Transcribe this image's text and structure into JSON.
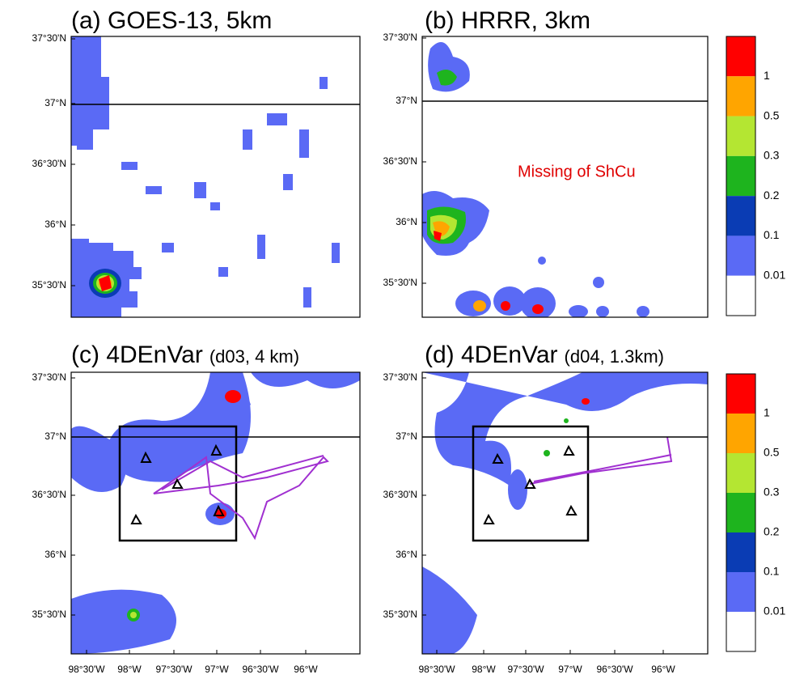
{
  "panels": [
    {
      "title": "(a) GOES-13, 5km"
    },
    {
      "title": "(b) HRRR, 3km",
      "annotation": "Missing of ShCu"
    },
    {
      "title": "(c) 4DEnVar",
      "subtitle": "(d03, 4 km)"
    },
    {
      "title": "(d) 4DEnVar",
      "subtitle": "(d04, 1.3km)"
    }
  ],
  "y_labels": [
    "37°30'N",
    "37°N",
    "36°30'N",
    "36°N",
    "35°30'N"
  ],
  "x_labels": [
    "98°30'W",
    "98°W",
    "97°30'W",
    "97°W",
    "96°30'W",
    "96°W"
  ],
  "colorbar": {
    "labels": [
      1,
      0.5,
      0.3,
      0.2,
      0.1,
      0.01
    ],
    "colors": [
      "#ff0000",
      "#ffa500",
      "#b4e632",
      "#1eb41e",
      "#0a3cb4",
      "#5a6af5",
      "#ffffff"
    ]
  }
}
